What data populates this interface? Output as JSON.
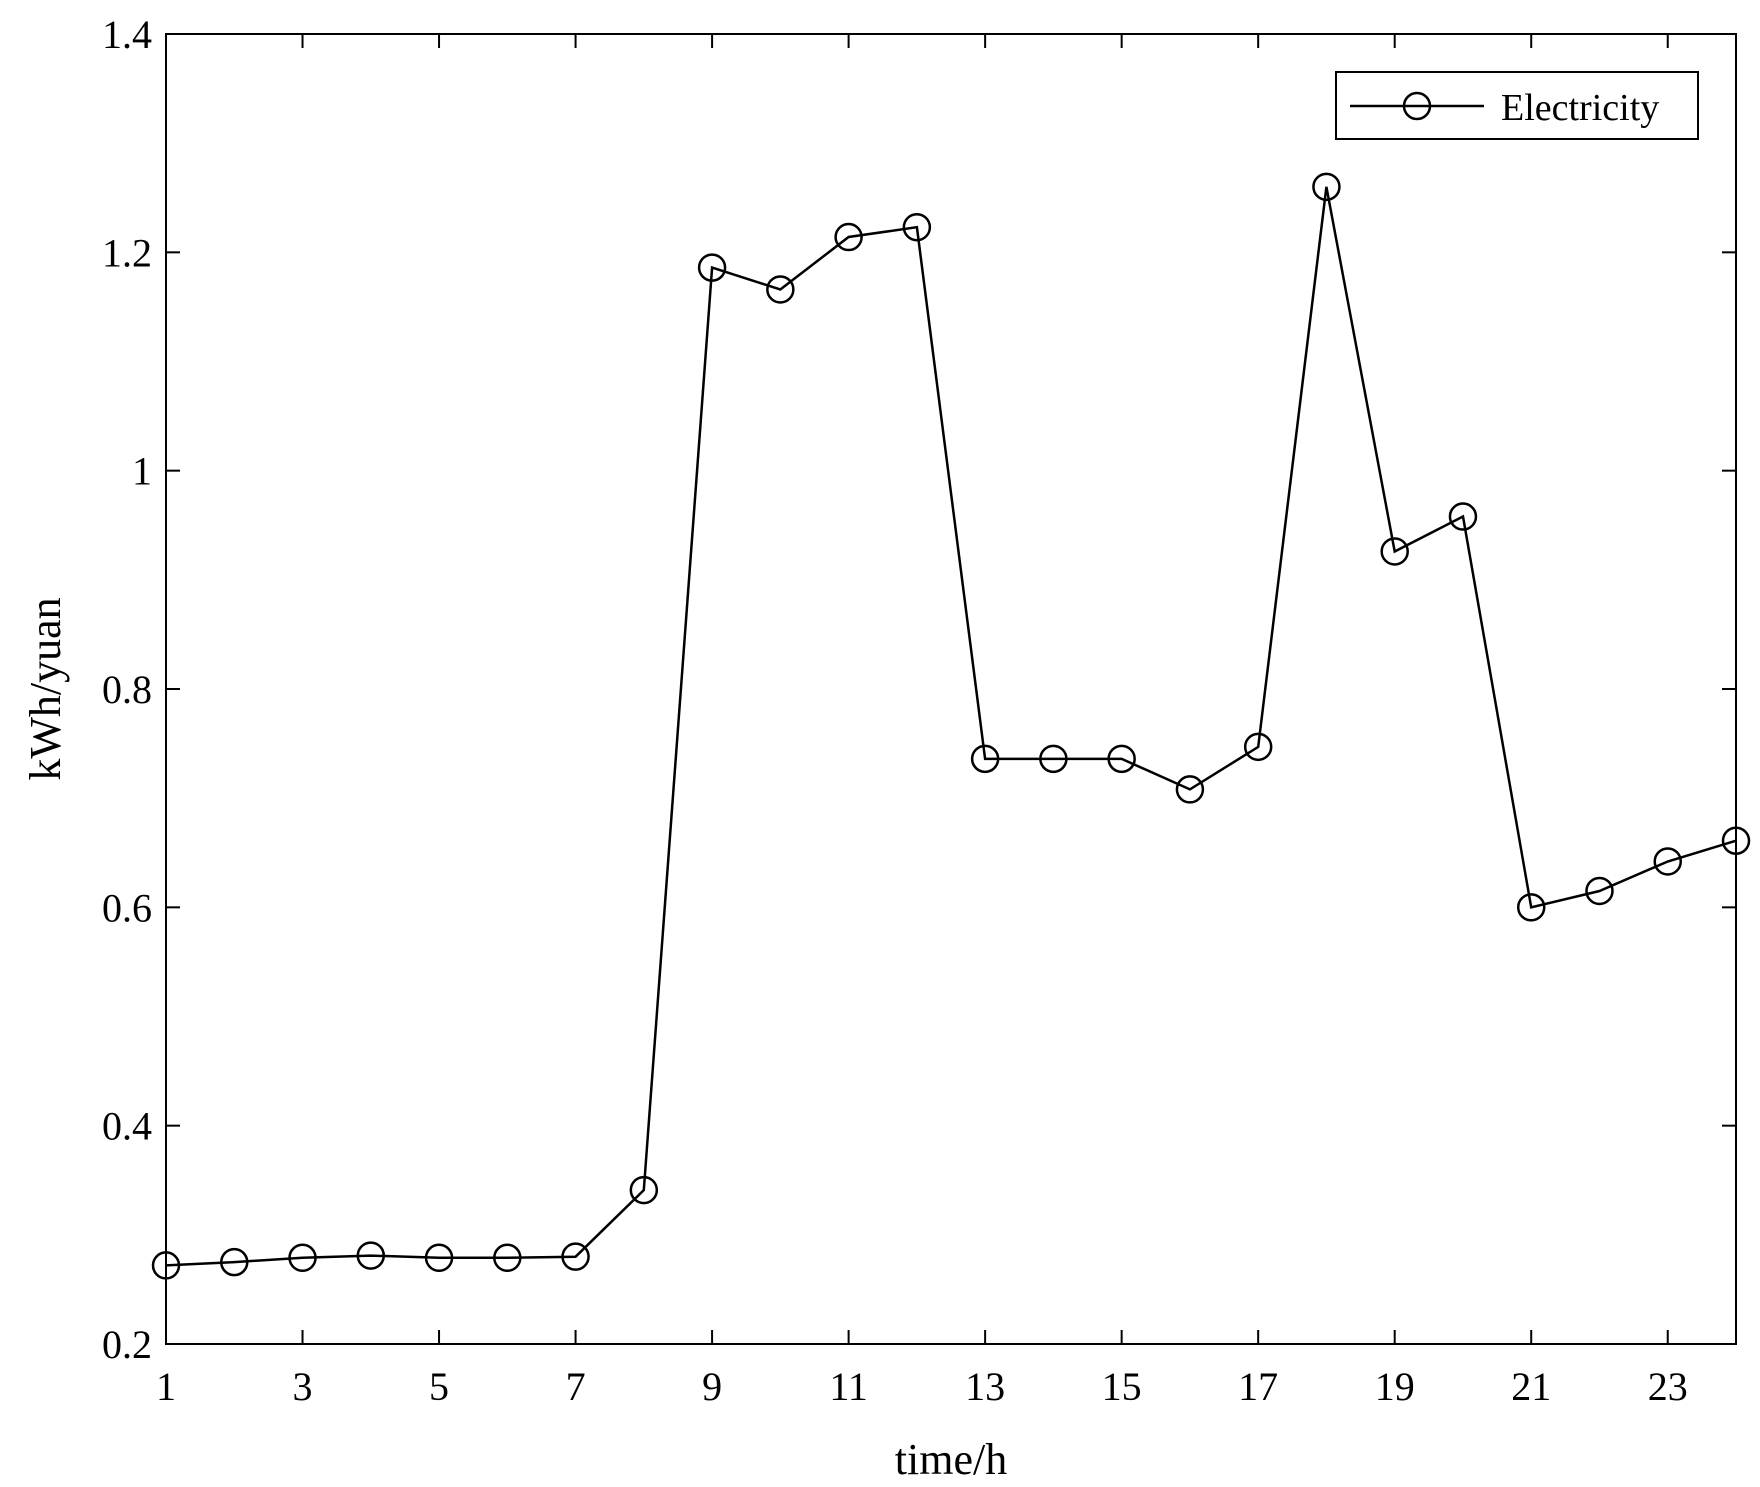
{
  "chart_data": {
    "type": "line",
    "title": "",
    "xlabel": "time/h",
    "ylabel": "kWh/yuan",
    "xlim": [
      1,
      24
    ],
    "ylim": [
      0.2,
      1.4
    ],
    "xticks": [
      1,
      3,
      5,
      7,
      9,
      11,
      13,
      15,
      17,
      19,
      21,
      23
    ],
    "yticks": [
      0.2,
      0.4,
      0.6,
      0.8,
      1.0,
      1.2,
      1.4
    ],
    "ytick_labels": [
      "0.2",
      "0.4",
      "0.6",
      "0.8",
      "1",
      "1.2",
      "1.4"
    ],
    "grid": false,
    "legend_position": "top-right",
    "marker": "circle",
    "line_color": "#000000",
    "x": [
      1,
      2,
      3,
      4,
      5,
      6,
      7,
      8,
      9,
      10,
      11,
      12,
      13,
      14,
      15,
      16,
      17,
      18,
      19,
      20,
      21,
      22,
      23,
      24
    ],
    "series": [
      {
        "name": "Electricity",
        "values": [
          0.272,
          0.275,
          0.279,
          0.281,
          0.279,
          0.279,
          0.28,
          0.341,
          1.186,
          1.166,
          1.214,
          1.223,
          0.736,
          0.736,
          0.736,
          0.708,
          0.747,
          1.26,
          0.926,
          0.958,
          0.6,
          0.615,
          0.642,
          0.661
        ]
      }
    ]
  }
}
